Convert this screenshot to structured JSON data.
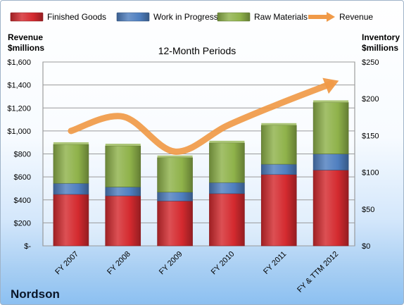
{
  "chart_data": {
    "type": "bar",
    "title": "12-Month Periods",
    "company": "Nordson",
    "left_axis_title": [
      "Revenue",
      "$millions"
    ],
    "right_axis_title": [
      "Inventory",
      "$millions"
    ],
    "categories": [
      "FY 2007",
      "FY 2008",
      "FY 2009",
      "FY 2010",
      "FY 2011",
      "FY & TTM 2012"
    ],
    "stacked": true,
    "series": [
      {
        "name": "Finished Goods",
        "axis": "right",
        "color": "#d42a2f",
        "values": [
          70,
          68,
          61,
          71,
          97,
          103
        ]
      },
      {
        "name": "Work in Progress",
        "axis": "right",
        "color": "#4f7fc0",
        "values": [
          15,
          12,
          12,
          15,
          14,
          22
        ]
      },
      {
        "name": "Raw Materials",
        "axis": "right",
        "color": "#8fb24a",
        "values": [
          53,
          56,
          47,
          54,
          53,
          70
        ]
      },
      {
        "name": "Revenue",
        "axis": "left",
        "type": "line",
        "color": "#f09a48",
        "values": [
          1000,
          1125,
          820,
          1045,
          1235,
          1410
        ]
      }
    ],
    "left_axis": {
      "min": 0,
      "max": 1600,
      "step": 200,
      "ticks": [
        "$-",
        "$200",
        "$400",
        "$600",
        "$800",
        "$1,000",
        "$1,200",
        "$1,400",
        "$1,600"
      ]
    },
    "right_axis": {
      "min": 0,
      "max": 250,
      "step": 50,
      "ticks": [
        "$0",
        "$50",
        "$100",
        "$150",
        "$200",
        "$250"
      ]
    },
    "legend_position": "top",
    "grid": true
  }
}
